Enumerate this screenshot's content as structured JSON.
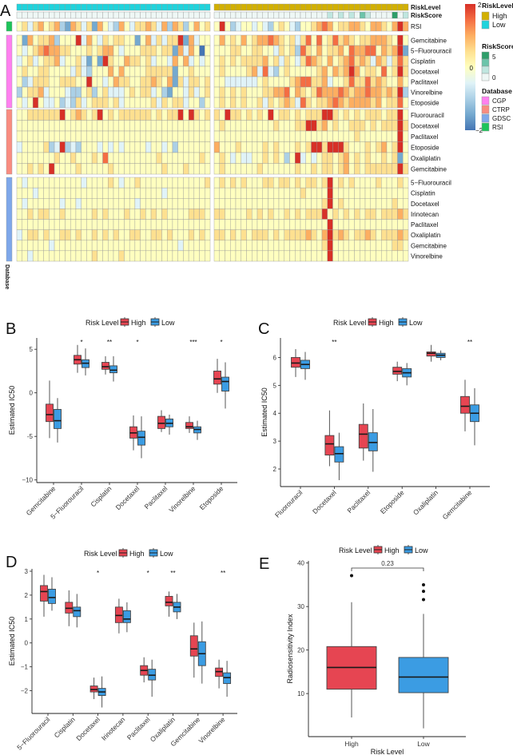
{
  "panels": {
    "A": "A",
    "B": "B",
    "C": "C",
    "D": "D",
    "E": "E"
  },
  "heatmap": {
    "annotation_labels": {
      "risk_level": "RiskLevel",
      "risk_score": "RiskScore",
      "database": "Database"
    },
    "colors": {
      "scale": [
        "#4575B4",
        "#74A9CF",
        "#ABD0E6",
        "#E0F3F8",
        "#FFFFBF",
        "#FEE090",
        "#FDAE61",
        "#F46D43",
        "#D73027"
      ],
      "risk_high": "#D2B000",
      "risk_low": "#1FD3DC",
      "risk_score": [
        "#EEF7F5",
        "#BFE6DF",
        "#6BC4AA",
        "#2E9E6A"
      ],
      "CGP": "#FF80F0",
      "CTRP": "#F98C80",
      "GDSC": "#7EA8EA",
      "RSI": "#1DC45A"
    },
    "risk_score_levels": {
      "low": "000000 000000 000000 000000 000000 000000",
      "high": "000000 000000 000000 000101 010210 000301"
    },
    "groups": [
      {
        "database": "RSI",
        "rows": [
          {
            "label": "RSI",
            "low": "453564 562165 351643 264355 653626 524645",
            "high": "484234 434324 543244 567645 566546 654686"
          }
        ]
      },
      {
        "database": "CGP",
        "rows": [
          {
            "label": "Gemcitabine",
            "low": "416455 624448 364354 554414 635355 816344",
            "high": "464546 456676 545357 474575 654556 665484"
          },
          {
            "label": "5−Fluorouracil",
            "low": "434567 665544 454566 434445 554551 636404",
            "high": "444554 455443 545275 464556 476677 465681"
          },
          {
            "label": "Cisplatin",
            "low": "345345 563445 314185 446554 534436 463434",
            "high": "454545 555645 354357 654645 675653 653575"
          },
          {
            "label": "Docetaxel",
            "low": "454455 444435 324446 464444 555551 445444",
            "high": "454444 563732 454444 456465 686455 474585"
          },
          {
            "label": "Paclitaxel",
            "low": "423555 445554 484434 655445 565461 535545",
            "high": "443333 334544 445677 556344 575575 654464"
          },
          {
            "label": "Vinorelbine",
            "low": "245563 444322 452453 334545 534214 435345",
            "high": "454545 444556 674654 576667 656676 656582"
          },
          {
            "label": "Etoposide",
            "low": "434843 342325 345554 534444 453545 534424",
            "high": "454545 445354 565375 455676 566665 645574"
          }
        ]
      },
      {
        "database": "CTRP",
        "rows": [
          {
            "label": "Fluorouracil",
            "low": "445555 558456 545845 455555 545455 848545",
            "high": "548554 545484 554545 558854 545455 545584"
          },
          {
            "label": "Docetaxel",
            "low": "444444 444444 444444 444444 444444 444444",
            "high": "454444 444445 444558 856454 455545 455585"
          },
          {
            "label": "Paclitaxel",
            "low": "444444 444444 444444 444444 444444 444444",
            "high": "444444 444444 444444 444444 445444 444484"
          },
          {
            "label": "Etoposide",
            "low": "344445 238232 444343 434444 344342 444444",
            "high": "644454 444545 444545 885888 544454 564584"
          },
          {
            "label": "Oxaliplatin",
            "low": "444444 454454 445474 444444 445444 444454",
            "high": "454343 344545 424834 345545 645454 454514"
          },
          {
            "label": "Gemcitabine",
            "low": "445454 844445 444445 444444 444544 454444",
            "high": "454444 445444 444544 545545 645455 555585"
          }
        ]
      },
      {
        "database": "GDSC",
        "rows": [
          {
            "label": "5−Fluorouracil",
            "low": "434444 444444 344445 434454 444444 444445",
            "high": "454545 444554 554545 545845 454444 544454"
          },
          {
            "label": "Cisplatin",
            "low": "444344 444444 444444 444444 444344 444444",
            "high": "444444 444444 444454 444844 444444 444444"
          },
          {
            "label": "Docetaxel",
            "low": "434444 443443 444444 444434 444444 444444",
            "high": "444444 444444 444444 445845 444444 444544"
          },
          {
            "label": "Irinotecan",
            "low": "445455 445444 445454 445445 454544 445554",
            "high": "554444 545454 454545 558454 545455 455565"
          },
          {
            "label": "Paclitaxel",
            "low": "444444 444444 444444 444444 444444 444444",
            "high": "444444 444444 444444 444844 444444 444444"
          },
          {
            "label": "Oxaliplatin",
            "low": "345545 445545 445454 544554 455454 445454",
            "high": "554545 455545 455556 546856 545565 455565"
          },
          {
            "label": "Gemcitabine",
            "low": "444444 344444 444444 444444 444444 344444",
            "high": "444444 444444 444444 445844 444444 444554"
          },
          {
            "label": "Vinorelbine",
            "low": "443444 444444 445444 454444 444444 444444",
            "high": "444444 444444 444444 444844 444444 444444"
          }
        ]
      }
    ],
    "legend": {
      "risk_level_title": "RiskLevel",
      "risk_level_items": [
        "High",
        "Low"
      ],
      "risk_score_title": "RiskScore",
      "risk_score_ticks": [
        "5",
        "0"
      ],
      "database_title": "Database",
      "database_items": [
        "CGP",
        "CTRP",
        "GDSC",
        "RSI"
      ],
      "scale_ticks": [
        "2",
        "0",
        "−2"
      ]
    }
  },
  "chart_data": [
    {
      "panel": "B",
      "type": "box",
      "legend_title": "Risk Level",
      "legend": [
        "High",
        "Low"
      ],
      "ylabel": "Estimated IC50",
      "xlabel": "",
      "ylim": [
        -10.3,
        6.3
      ],
      "yticks": [
        5,
        0,
        -5,
        -10
      ],
      "ytick_labels": [
        "5",
        "0",
        "-5",
        "−10"
      ],
      "categories": [
        "Gemcitabine",
        "5−Fluorouracil",
        "Cisplatin",
        "Docetaxel",
        "Paclitaxel",
        "Vinorelbine",
        "Etoposide"
      ],
      "significance": [
        "",
        "*",
        "**",
        "*",
        "",
        "***",
        "*"
      ],
      "series": [
        {
          "name": "High",
          "color": "#E64552",
          "boxes": [
            [
              -5.2,
              -3.3,
              -2.5,
              -1.3,
              1.4
            ],
            [
              2.3,
              3.3,
              3.8,
              4.3,
              5.5
            ],
            [
              2.1,
              2.7,
              3.0,
              3.5,
              4.2
            ],
            [
              -6.6,
              -5.2,
              -4.6,
              -3.9,
              -2.6
            ],
            [
              -4.5,
              -4.1,
              -3.5,
              -2.7,
              -2.0
            ],
            [
              -4.6,
              -4.1,
              -3.9,
              -3.4,
              -2.7
            ],
            [
              0,
              1.0,
              1.6,
              2.5,
              3.9
            ]
          ]
        },
        {
          "name": "Low",
          "color": "#3B9CE3",
          "boxes": [
            [
              -5.7,
              -4.1,
              -3.2,
              -1.9,
              -0.6
            ],
            [
              2.0,
              2.9,
              3.4,
              3.8,
              5.1
            ],
            [
              1.3,
              2.3,
              2.6,
              3.1,
              4.2
            ],
            [
              -7.5,
              -6.0,
              -5.1,
              -4.4,
              -2.7
            ],
            [
              -4.8,
              -3.9,
              -3.5,
              -3.0,
              -2.5
            ],
            [
              -5.4,
              -4.6,
              -4.2,
              -3.9,
              -3.2
            ],
            [
              -1.8,
              0.2,
              1.3,
              1.8,
              3.5
            ]
          ]
        }
      ]
    },
    {
      "panel": "C",
      "type": "box",
      "legend_title": "Risk Level",
      "legend": [
        "High",
        "Low"
      ],
      "ylabel": "Estimated IC50",
      "xlabel": "",
      "ylim": [
        1.37,
        6.7
      ],
      "yticks": [
        2,
        3,
        4,
        5,
        6
      ],
      "ytick_labels": [
        "2",
        "3",
        "4",
        "5",
        "6"
      ],
      "categories": [
        "Fluorouracil",
        "Docetaxel",
        "Paclitaxel",
        "Etoposide",
        "Oxaliplatin",
        "Gemcitabine"
      ],
      "significance": [
        "",
        "**",
        "",
        "",
        "",
        "**"
      ],
      "series": [
        {
          "name": "High",
          "color": "#E64552",
          "boxes": [
            [
              5.3,
              5.65,
              5.8,
              6.0,
              6.3
            ],
            [
              2.1,
              2.5,
              2.9,
              3.2,
              4.1
            ],
            [
              2.3,
              2.75,
              3.25,
              3.6,
              4.35
            ],
            [
              5.15,
              5.4,
              5.5,
              5.65,
              5.85
            ],
            [
              5.85,
              6.05,
              6.15,
              6.2,
              6.45
            ],
            [
              3.35,
              4.0,
              4.25,
              4.6,
              5.2
            ]
          ]
        },
        {
          "name": "Low",
          "color": "#3B9CE3",
          "boxes": [
            [
              5.2,
              5.6,
              5.75,
              5.9,
              6.2
            ],
            [
              1.6,
              2.25,
              2.55,
              2.8,
              3.3
            ],
            [
              1.9,
              2.65,
              2.95,
              3.3,
              4.15
            ],
            [
              5.0,
              5.3,
              5.45,
              5.6,
              5.8
            ],
            [
              5.9,
              6.0,
              6.08,
              6.15,
              6.25
            ],
            [
              2.85,
              3.7,
              4.0,
              4.3,
              4.9
            ]
          ]
        }
      ]
    },
    {
      "panel": "D",
      "type": "box",
      "legend_title": "Risk Level",
      "legend": [
        "High",
        "Low"
      ],
      "ylabel": "Estimated IC50",
      "xlabel": "",
      "ylim": [
        -2.95,
        3.1
      ],
      "yticks": [
        3,
        2,
        1,
        0,
        -1,
        -2
      ],
      "ytick_labels": [
        "3",
        "2",
        "1",
        "0",
        "−1",
        "−2"
      ],
      "categories": [
        "5−Fluorouracil",
        "Cisplatin",
        "Docetaxel",
        "Irinotecan",
        "Paclitaxel",
        "Oxaliplatin",
        "Gemcitabine",
        "Vinorelbine"
      ],
      "significance": [
        "",
        "",
        "*",
        "",
        "*",
        "**",
        "",
        "**"
      ],
      "series": [
        {
          "name": "High",
          "color": "#E64552",
          "boxes": [
            [
              1.1,
              1.75,
              2.15,
              2.4,
              2.85
            ],
            [
              0.7,
              1.25,
              1.45,
              1.7,
              2.2
            ],
            [
              -2.35,
              -2.05,
              -1.95,
              -1.8,
              -1.45
            ],
            [
              0.4,
              0.85,
              1.15,
              1.5,
              1.85
            ],
            [
              -1.65,
              -1.35,
              -1.15,
              -0.95,
              -0.6
            ],
            [
              1.1,
              1.55,
              1.7,
              1.95,
              2.15
            ],
            [
              -1.45,
              -0.55,
              -0.25,
              0.3,
              0.85
            ],
            [
              -1.9,
              -1.4,
              -1.2,
              -1.05,
              -0.7
            ]
          ]
        },
        {
          "name": "Low",
          "color": "#3B9CE3",
          "boxes": [
            [
              1.35,
              1.65,
              1.9,
              2.25,
              2.75
            ],
            [
              0.65,
              1.1,
              1.35,
              1.5,
              2.05
            ],
            [
              -2.7,
              -2.2,
              -2.05,
              -1.9,
              -1.4
            ],
            [
              0.45,
              0.85,
              1.0,
              1.35,
              1.7
            ],
            [
              -2.25,
              -1.55,
              -1.35,
              -1.1,
              -0.7
            ],
            [
              1.0,
              1.3,
              1.5,
              1.7,
              2.05
            ],
            [
              -1.7,
              -0.95,
              -0.45,
              0.05,
              0.9
            ],
            [
              -2.25,
              -1.7,
              -1.45,
              -1.25,
              -0.75
            ]
          ]
        }
      ]
    },
    {
      "panel": "E",
      "type": "box",
      "legend_title": "Risk Level",
      "legend": [
        "High",
        "Low"
      ],
      "ylabel": "Radiosensitivity Index",
      "xlabel": "Risk Level",
      "ylim": [
        0.1,
        40.5
      ],
      "yticks": [
        10,
        20,
        30,
        40
      ],
      "ytick_labels": [
        "10",
        "20",
        "30",
        "40"
      ],
      "categories": [
        "High",
        "Low"
      ],
      "p_value": "0.23",
      "series": [
        {
          "name": "High",
          "color": "#E64552",
          "box": [
            4.5,
            11,
            16,
            20.8,
            31
          ],
          "outliers": [
            37.1
          ]
        },
        {
          "name": "Low",
          "color": "#3B9CE3",
          "box": [
            2,
            10.2,
            13.8,
            18.3,
            28.3
          ],
          "outliers": [
            31.6,
            33.5,
            35
          ]
        }
      ]
    }
  ]
}
